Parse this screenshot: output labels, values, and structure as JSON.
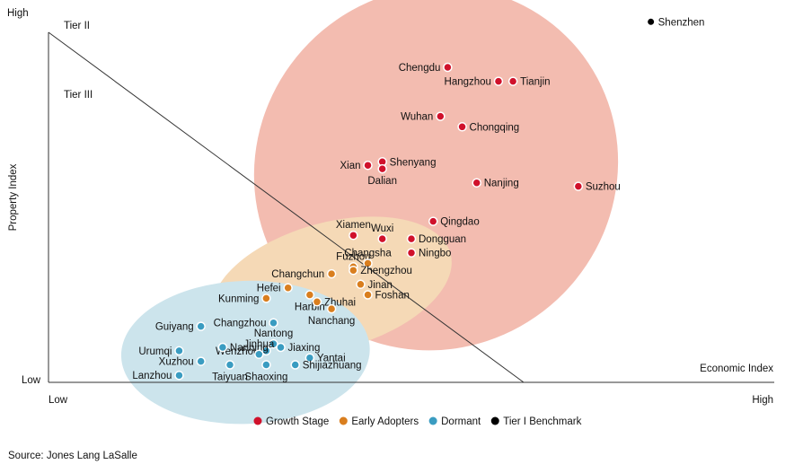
{
  "chart_data": {
    "type": "scatter",
    "xlabel": "Economic Index",
    "ylabel": "Property Index",
    "x_tick_labels": [
      "Low",
      "High"
    ],
    "y_tick_labels": [
      "High",
      "Low"
    ],
    "tiers": [
      "Tier II",
      "Tier III"
    ],
    "legend_position": "bottom",
    "grid": false,
    "series": [
      {
        "name": "Growth Stage",
        "color": "#d0112b",
        "cluster_color": "#f3bcb0",
        "points": [
          {
            "label": "Chengdu",
            "x": 0.55,
            "y": 0.9
          },
          {
            "label": "Hangzhou",
            "x": 0.62,
            "y": 0.86
          },
          {
            "label": "Tianjin",
            "x": 0.64,
            "y": 0.86
          },
          {
            "label": "Wuhan",
            "x": 0.54,
            "y": 0.76
          },
          {
            "label": "Chongqing",
            "x": 0.57,
            "y": 0.73
          },
          {
            "label": "Xian",
            "x": 0.44,
            "y": 0.62
          },
          {
            "label": "Shenyang",
            "x": 0.46,
            "y": 0.63
          },
          {
            "label": "Dalian",
            "x": 0.46,
            "y": 0.61
          },
          {
            "label": "Nanjing",
            "x": 0.59,
            "y": 0.57
          },
          {
            "label": "Suzhou",
            "x": 0.73,
            "y": 0.56
          },
          {
            "label": "Qingdao",
            "x": 0.53,
            "y": 0.46
          },
          {
            "label": "Xiamen",
            "x": 0.42,
            "y": 0.42
          },
          {
            "label": "Wuxi",
            "x": 0.46,
            "y": 0.41
          },
          {
            "label": "Dongguan",
            "x": 0.5,
            "y": 0.41
          },
          {
            "label": "Ningbo",
            "x": 0.5,
            "y": 0.37
          }
        ]
      },
      {
        "name": "Early Adopters",
        "color": "#d97e1e",
        "cluster_color": "#f5d9b6",
        "points": [
          {
            "label": "Fuzhou",
            "x": 0.42,
            "y": 0.33
          },
          {
            "label": "Changsha",
            "x": 0.44,
            "y": 0.34
          },
          {
            "label": "Changchun",
            "x": 0.39,
            "y": 0.31
          },
          {
            "label": "Zhengzhou",
            "x": 0.42,
            "y": 0.32
          },
          {
            "label": "Hefei",
            "x": 0.33,
            "y": 0.27
          },
          {
            "label": "Jinan",
            "x": 0.43,
            "y": 0.28
          },
          {
            "label": "Kunming",
            "x": 0.3,
            "y": 0.24
          },
          {
            "label": "Foshan",
            "x": 0.44,
            "y": 0.25
          },
          {
            "label": "Harbin",
            "x": 0.36,
            "y": 0.25
          },
          {
            "label": "Zhuhai",
            "x": 0.37,
            "y": 0.23
          },
          {
            "label": "Nanchang",
            "x": 0.39,
            "y": 0.21
          }
        ]
      },
      {
        "name": "Dormant",
        "color": "#3a9cc1",
        "cluster_color": "#cce4ec",
        "points": [
          {
            "label": "Guiyang",
            "x": 0.21,
            "y": 0.16
          },
          {
            "label": "Changzhou",
            "x": 0.31,
            "y": 0.17
          },
          {
            "label": "Nantong",
            "x": 0.31,
            "y": 0.11
          },
          {
            "label": "Wenzhou",
            "x": 0.3,
            "y": 0.09
          },
          {
            "label": "Jiaxing",
            "x": 0.32,
            "y": 0.1
          },
          {
            "label": "Urumqi",
            "x": 0.18,
            "y": 0.09
          },
          {
            "label": "Nanning",
            "x": 0.24,
            "y": 0.1
          },
          {
            "label": "Jinhua",
            "x": 0.29,
            "y": 0.08
          },
          {
            "label": "Yantai",
            "x": 0.36,
            "y": 0.07
          },
          {
            "label": "Xuzhou",
            "x": 0.21,
            "y": 0.06
          },
          {
            "label": "Taiyuan",
            "x": 0.25,
            "y": 0.05
          },
          {
            "label": "Shaoxing",
            "x": 0.3,
            "y": 0.05
          },
          {
            "label": "Shijiazhuang",
            "x": 0.34,
            "y": 0.05
          },
          {
            "label": "Lanzhou",
            "x": 0.18,
            "y": 0.02
          }
        ]
      },
      {
        "name": "Tier I Benchmark",
        "color": "#000000",
        "points": [
          {
            "label": "Shenzhen",
            "x": 0.83,
            "y": 1.03
          }
        ]
      }
    ]
  },
  "source": "Source: Jones Lang LaSalle"
}
